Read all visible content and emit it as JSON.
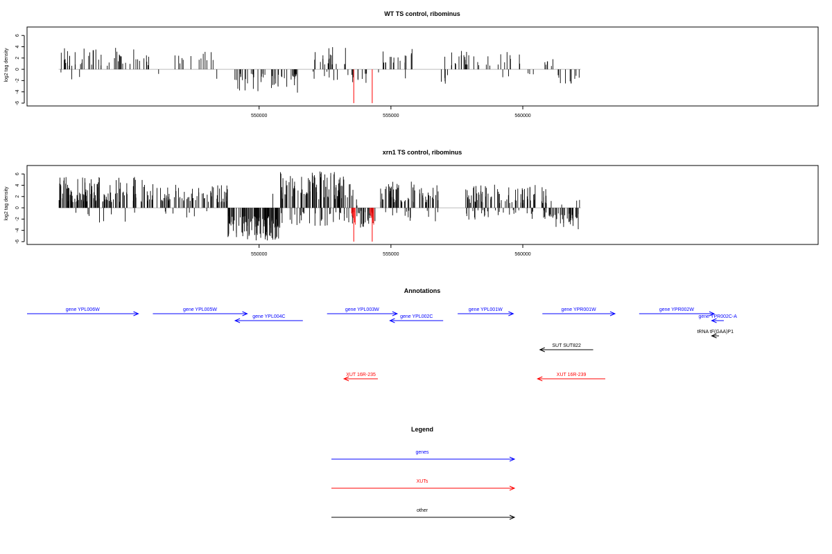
{
  "chart_data": [
    {
      "type": "bar",
      "title": "WT TS control, ribominus",
      "ylabel": "log2 tag density",
      "xlabel": "",
      "xlim": [
        541200,
        571200
      ],
      "ylim": [
        -6.5,
        7.5
      ],
      "xticks": [
        550000,
        555000,
        560000
      ],
      "yticks": [
        -6,
        -4,
        -2,
        0,
        2,
        4,
        6
      ],
      "grid": false,
      "colors": {
        "signal": "#000000",
        "highlight": "#ff0000",
        "axis": "#000000"
      },
      "blocks": [
        {
          "x0": 542400,
          "x1": 545800,
          "sign": 1,
          "min": 0.6,
          "max": 3.8,
          "n": 50,
          "scatter": 0.06
        },
        {
          "x0": 545800,
          "x1": 548400,
          "sign": 1,
          "min": 0.8,
          "max": 3.6,
          "n": 16,
          "scatter": 0.1
        },
        {
          "x0": 549000,
          "x1": 551500,
          "sign": -1,
          "min": 0.8,
          "max": 4.2,
          "n": 46,
          "scatter": 0
        },
        {
          "x0": 552000,
          "x1": 553400,
          "sign": 1,
          "min": 0.8,
          "max": 4.0,
          "n": 28,
          "scatter": 0.15
        },
        {
          "x0": 553400,
          "x1": 554100,
          "sign": -1,
          "min": 0.3,
          "max": 2.5,
          "n": 9,
          "scatter": 0
        },
        {
          "x0": 554500,
          "x1": 555800,
          "sign": 1,
          "min": 0.8,
          "max": 3.6,
          "n": 18,
          "scatter": 0.1
        },
        {
          "x0": 556900,
          "x1": 557200,
          "sign": -1,
          "min": 0.6,
          "max": 2.8,
          "n": 5,
          "scatter": 0
        },
        {
          "x0": 557000,
          "x1": 559900,
          "sign": 1,
          "min": 0.6,
          "max": 3.3,
          "n": 32,
          "scatter": 0.05
        },
        {
          "x0": 560200,
          "x1": 560600,
          "sign": -1,
          "min": 0.4,
          "max": 1.6,
          "n": 3,
          "scatter": 0
        },
        {
          "x0": 560800,
          "x1": 561400,
          "sign": 1,
          "min": 0.4,
          "max": 2.1,
          "n": 6,
          "scatter": 0.2
        },
        {
          "x0": 561300,
          "x1": 562200,
          "sign": -1,
          "min": 1.0,
          "max": 2.6,
          "n": 10,
          "scatter": 0
        }
      ],
      "highlight_bars": [
        {
          "x": 553590,
          "value": -6.0
        },
        {
          "x": 554290,
          "value": -6.0
        }
      ]
    },
    {
      "type": "bar",
      "title": "xrn1 TS control, ribominus",
      "ylabel": "log2 tag density",
      "xlabel": "",
      "xlim": [
        541200,
        571200
      ],
      "ylim": [
        -6.5,
        7.5
      ],
      "xticks": [
        550000,
        555000,
        560000
      ],
      "yticks": [
        -6,
        -4,
        -2,
        0,
        2,
        4,
        6
      ],
      "grid": false,
      "colors": {
        "signal": "#000000",
        "highlight": "#ff0000",
        "axis": "#000000"
      },
      "blocks": [
        {
          "x0": 542400,
          "x1": 545800,
          "sign": 1,
          "min": 1.0,
          "max": 5.5,
          "n": 130,
          "scatter": 0.1
        },
        {
          "x0": 545800,
          "x1": 548800,
          "sign": 1,
          "min": 1.0,
          "max": 4.2,
          "n": 80,
          "scatter": 0.1
        },
        {
          "x0": 548800,
          "x1": 550800,
          "sign": -1,
          "min": 1.5,
          "max": 5.8,
          "n": 110,
          "scatter": 0.05
        },
        {
          "x0": 550800,
          "x1": 553600,
          "sign": 1,
          "min": 1.5,
          "max": 6.5,
          "n": 130,
          "scatter": 0.25
        },
        {
          "x0": 553500,
          "x1": 554400,
          "sign": -1,
          "min": 0.5,
          "max": 3.5,
          "n": 30,
          "scatter": 0.2
        },
        {
          "x0": 554600,
          "x1": 556800,
          "sign": 1,
          "min": 1.0,
          "max": 4.8,
          "n": 80,
          "scatter": 0.15
        },
        {
          "x0": 557800,
          "x1": 561000,
          "sign": 1,
          "min": 0.8,
          "max": 4.2,
          "n": 110,
          "scatter": 0.4
        },
        {
          "x0": 561000,
          "x1": 562200,
          "sign": -1,
          "min": 1.0,
          "max": 4.0,
          "n": 40,
          "scatter": 0.1
        }
      ],
      "highlight_bars": [
        {
          "x": 553590,
          "value": -6.0
        },
        {
          "x": 554290,
          "value": -6.0
        }
      ]
    }
  ],
  "annotations": {
    "title": "Annotations",
    "colors": {
      "genes": "#0000ff",
      "XUTs": "#ff0000",
      "other": "#000000"
    },
    "items": [
      {
        "label": "gene YPL006W",
        "kind": "genes",
        "start": 542600,
        "end": 547200,
        "row": 0
      },
      {
        "label": "gene YPL005W",
        "kind": "genes",
        "start": 547800,
        "end": 551700,
        "row": 0
      },
      {
        "label": "gene YPL004C",
        "kind": "genes",
        "start": 554000,
        "end": 551200,
        "row": 1
      },
      {
        "label": "gene YPL003W",
        "kind": "genes",
        "start": 555000,
        "end": 557900,
        "row": 0
      },
      {
        "label": "gene YPL002C",
        "kind": "genes",
        "start": 559800,
        "end": 557600,
        "row": 1
      },
      {
        "label": "gene YPL001W",
        "kind": "genes",
        "start": 560400,
        "end": 562700,
        "row": 0
      },
      {
        "label": "gene YPR001W",
        "kind": "genes",
        "start": 563900,
        "end": 566900,
        "row": 0
      },
      {
        "label": "gene YPR002W",
        "kind": "genes",
        "start": 567900,
        "end": 571000,
        "row": 0
      },
      {
        "label": "gene YPR002C-A",
        "kind": "genes",
        "start": 571400,
        "end": 570900,
        "row": 1
      },
      {
        "label": "tRNA tF(GAA)P1",
        "kind": "other",
        "start": 571200,
        "end": 570900,
        "row": 2
      },
      {
        "label": "SUT SUT822",
        "kind": "other",
        "start": 566000,
        "end": 563800,
        "row": 3
      },
      {
        "label": "XUT 16R-235",
        "kind": "XUTs",
        "start": 557100,
        "end": 555700,
        "row": 4
      },
      {
        "label": "XUT 16R-239",
        "kind": "XUTs",
        "start": 566500,
        "end": 563700,
        "row": 4
      }
    ]
  },
  "legend": {
    "title": "Legend",
    "items": [
      {
        "label": "genes",
        "color": "#0000ff"
      },
      {
        "label": "XUTs",
        "color": "#ff0000"
      },
      {
        "label": "other",
        "color": "#000000"
      }
    ]
  }
}
